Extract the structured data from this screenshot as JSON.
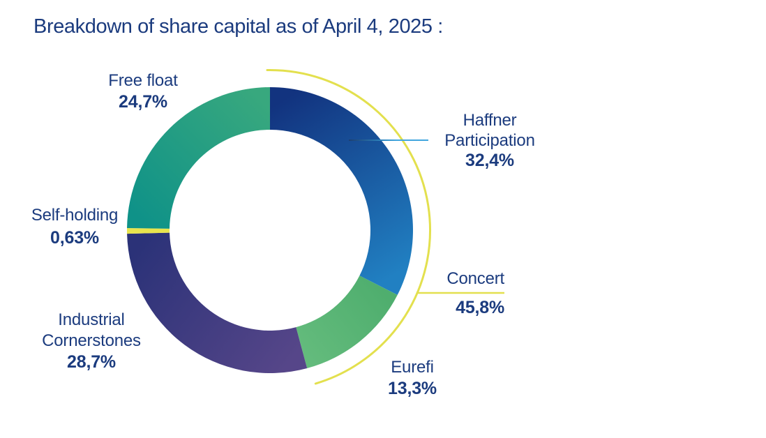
{
  "chart_data": {
    "type": "pie",
    "subtype": "donut",
    "title": "Breakdown of share capital as of April 4, 2025 :",
    "unit": "%",
    "start": "top",
    "direction": "clockwise",
    "text_color": "#1b3b7e",
    "leader_line_color": "#41a6de",
    "segments": [
      {
        "label": "Haffner Participation",
        "label_lines": [
          "Haffner",
          "Participation"
        ],
        "value": 32.4,
        "display": "32,4%",
        "color_start": "#12337f",
        "color_end": "#2180c2"
      },
      {
        "label": "Eurefi",
        "label_lines": [
          "Eurefi"
        ],
        "value": 13.3,
        "display": "13,3%",
        "color_start": "#4fae6e",
        "color_end": "#63bb7c"
      },
      {
        "label": "Industrial Cornerstones",
        "label_lines": [
          "Industrial",
          "Cornerstones"
        ],
        "value": 28.7,
        "display": "28,7%",
        "color_start": "#564689",
        "color_end": "#2b3278"
      },
      {
        "label": "Self-holding",
        "label_lines": [
          "Self-holding"
        ],
        "value": 0.63,
        "display": "0,63%",
        "color_start": "#e8e44d",
        "color_end": "#e8e44d"
      },
      {
        "label": "Free float",
        "label_lines": [
          "Free float"
        ],
        "value": 24.7,
        "display": "24,7%",
        "color_start": "#0f9288",
        "color_end": "#38a87e"
      }
    ],
    "group_annotation": {
      "label": "Concert",
      "value": 45.8,
      "display": "45,8%",
      "members": [
        "Haffner Participation",
        "Eurefi"
      ],
      "arc_color": "#e3e04e"
    }
  }
}
